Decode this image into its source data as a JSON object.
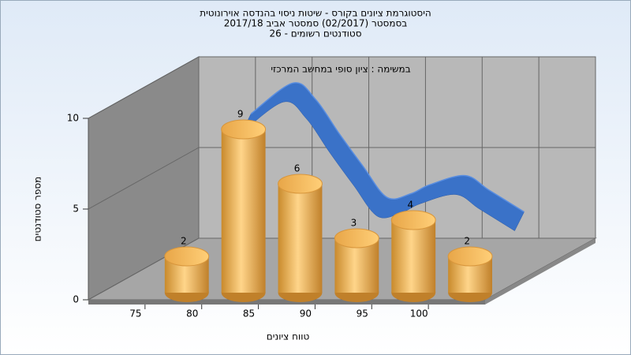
{
  "chart_data": {
    "type": "histogram",
    "title": [
      "היסטוגרמת ציונים בקורס - שיטות ניסוי בהנדסה אוירונוטית",
      "בסמסטר  (02/2017)  סמסטר אביב 2017/18",
      "סטודנטים רשומים - 26"
    ],
    "annotation": "במשימה : ציון סופי במחשב המרכזי",
    "xlabel": "טווח ציונים",
    "ylabel": "מספר סטודנטים",
    "bins": [
      75,
      80,
      85,
      90,
      95,
      100,
      105
    ],
    "values": [
      2,
      9,
      6,
      3,
      4,
      2
    ],
    "color": "#f0b450",
    "xlim": [
      70,
      105
    ],
    "xticks": [
      75,
      80,
      85,
      90,
      95,
      100
    ],
    "ylim": [
      0,
      10
    ],
    "yticks": [
      0,
      5,
      10
    ],
    "grid": true,
    "curve": {
      "color": "#3a72c8",
      "x": [
        78.5,
        82.2,
        84.2,
        86.3,
        88.4,
        90.5,
        92.6,
        94.3,
        97.4,
        99.5,
        102.6
      ],
      "values": [
        8.2,
        9.9,
        9.0,
        7.1,
        5.3,
        3.6,
        3.8,
        4.3,
        4.8,
        4.0,
        2.8
      ]
    }
  }
}
